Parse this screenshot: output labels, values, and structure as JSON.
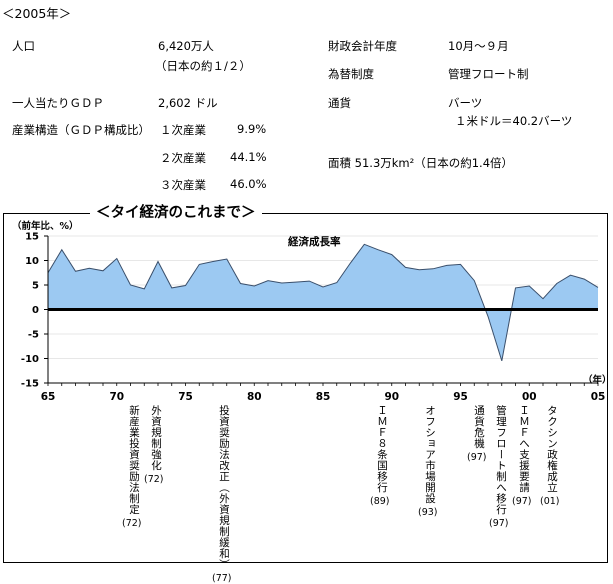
{
  "header": {
    "year_label": "＜2005年＞"
  },
  "facts": {
    "population_label": "人口",
    "population_value": "6,420万人",
    "population_note": "（日本の約１/２）",
    "gdp_label": "一人当たりＧＤＰ",
    "gdp_value": "2,602 ドル",
    "industry_label": "産業構造（ＧＤＰ構成比）",
    "industry": [
      {
        "name": "１次産業",
        "value": "9.9%"
      },
      {
        "name": "２次産業",
        "value": "44.1%"
      },
      {
        "name": "３次産業",
        "value": "46.0%"
      }
    ],
    "fiscal_label": "財政会計年度",
    "fiscal_value": "10月～９月",
    "fx_label": "為替制度",
    "fx_value": "管理フロート制",
    "currency_label": "通貨",
    "currency_value": "バーツ",
    "currency_rate": "１米ドル＝40.2バーツ",
    "area_text": "面積 51.3万km²（日本の約1.4倍）"
  },
  "chart_data": {
    "type": "area",
    "title": "＜タイ経済のこれまで＞",
    "series_label": "経済成長率",
    "ylabel": "（前年比、%）",
    "xunit": "（年）",
    "ylim": [
      -15,
      15
    ],
    "xlim": [
      1965,
      2005
    ],
    "x_ticks": [
      {
        "value": 1965,
        "label": "65"
      },
      {
        "value": 1970,
        "label": "70"
      },
      {
        "value": 1975,
        "label": "75"
      },
      {
        "value": 1980,
        "label": "80"
      },
      {
        "value": 1985,
        "label": "85"
      },
      {
        "value": 1990,
        "label": "90"
      },
      {
        "value": 1995,
        "label": "95"
      },
      {
        "value": 2000,
        "label": "00"
      },
      {
        "value": 2005,
        "label": "05"
      }
    ],
    "y_ticks": [
      15,
      10,
      5,
      0,
      -5,
      -10,
      -15
    ],
    "x": [
      1965,
      1966,
      1967,
      1968,
      1969,
      1970,
      1971,
      1972,
      1973,
      1974,
      1975,
      1976,
      1977,
      1978,
      1979,
      1980,
      1981,
      1982,
      1983,
      1984,
      1985,
      1986,
      1987,
      1988,
      1989,
      1990,
      1991,
      1992,
      1993,
      1994,
      1995,
      1996,
      1997,
      1998,
      1999,
      2000,
      2001,
      2002,
      2003,
      2004,
      2005
    ],
    "series": [
      {
        "values": [
          7.5,
          12.2,
          7.8,
          8.4,
          7.9,
          10.4,
          5.0,
          4.2,
          9.8,
          4.4,
          4.9,
          9.2,
          9.8,
          10.3,
          5.3,
          4.8,
          5.9,
          5.4,
          5.6,
          5.8,
          4.6,
          5.5,
          9.5,
          13.3,
          12.2,
          11.2,
          8.6,
          8.1,
          8.3,
          9.0,
          9.2,
          5.9,
          -1.4,
          -10.5,
          4.4,
          4.8,
          2.2,
          5.3,
          7.0,
          6.2,
          4.5
        ]
      }
    ],
    "events": [
      {
        "x": 1972,
        "text": "新産業投資奨励法制定",
        "year": "(72)"
      },
      {
        "x": 1972,
        "text": "外資規制強化",
        "year": "(72)"
      },
      {
        "x": 1977,
        "text": "投資奨励法改正（外資規制緩和）",
        "year": "(77)"
      },
      {
        "x": 1989,
        "text": "ＩＭＦ８条国移行",
        "year": "(89)"
      },
      {
        "x": 1993,
        "text": "オフショア市場開設",
        "year": "(93)"
      },
      {
        "x": 1997,
        "text": "通貨危機",
        "year": "(97)"
      },
      {
        "x": 1997,
        "text": "管理フロート制へ移行",
        "year": "(97)"
      },
      {
        "x": 1997,
        "text": "ＩＭＦへ支援要請",
        "year": "(97)"
      },
      {
        "x": 2001,
        "text": "タクシン政権成立",
        "year": "(01)"
      }
    ]
  }
}
